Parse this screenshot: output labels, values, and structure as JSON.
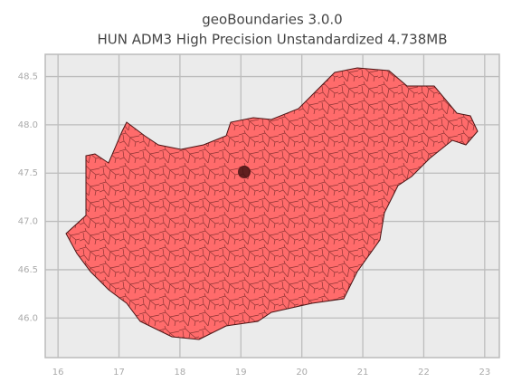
{
  "chart_data": {
    "type": "map",
    "title": "geoBoundaries 3.0.0",
    "subtitle": "HUN ADM3 High Precision Unstandardized 4.738MB",
    "xlim": [
      15.79,
      23.24
    ],
    "ylim": [
      45.59,
      48.73
    ],
    "xticks": [
      16,
      17,
      18,
      19,
      20,
      21,
      22,
      23
    ],
    "yticks": [
      {
        "value": 46,
        "label": "46.0"
      },
      46.5,
      {
        "value": 47,
        "label": "47.0"
      },
      47.5,
      {
        "value": 48,
        "label": "48.0"
      },
      48.5
    ],
    "grid": true,
    "color": "#ff6b6b"
  }
}
